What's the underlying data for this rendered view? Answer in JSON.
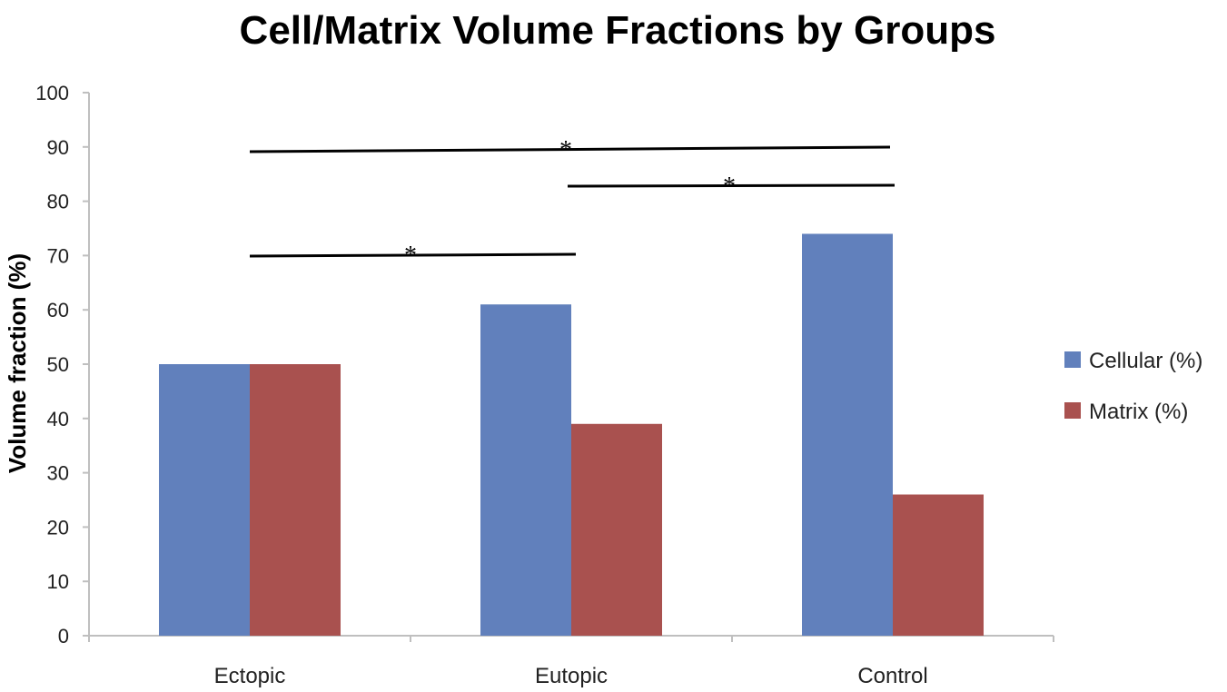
{
  "chart_data": {
    "type": "bar",
    "title": "Cell/Matrix Volume Fractions by Groups",
    "xlabel": "",
    "ylabel": "Volume fraction (%)",
    "ylim": [
      0,
      100
    ],
    "yticks": [
      0,
      10,
      20,
      30,
      40,
      50,
      60,
      70,
      80,
      90,
      100
    ],
    "categories": [
      "Ectopic",
      "Eutopic",
      "Control"
    ],
    "series": [
      {
        "name": "Cellular (%)",
        "color": "#6180BC",
        "values": [
          50,
          61,
          74
        ]
      },
      {
        "name": "Matrix (%)",
        "color": "#A9514F",
        "values": [
          50,
          39,
          26
        ]
      }
    ],
    "legend_position": "right",
    "grid": false,
    "significance": [
      {
        "from": "Ectopic",
        "to": "Control",
        "label": "*"
      },
      {
        "from": "Eutopic",
        "to": "Control",
        "label": "*"
      },
      {
        "from": "Ectopic",
        "to": "Eutopic",
        "label": "*"
      }
    ]
  }
}
